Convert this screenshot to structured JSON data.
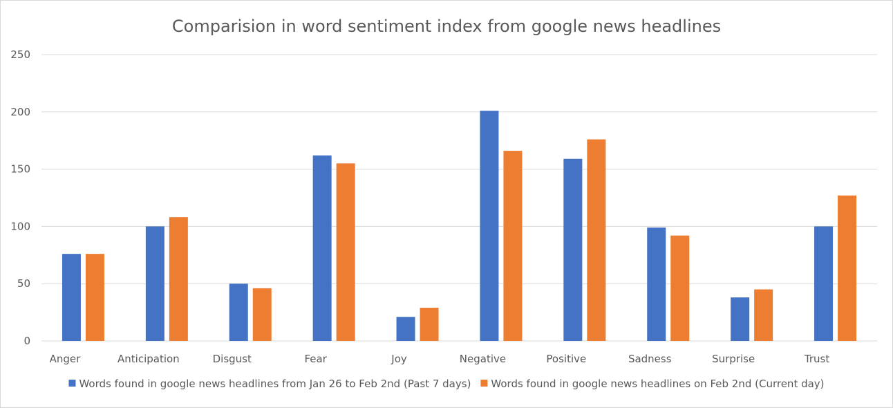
{
  "chart_data": {
    "type": "bar",
    "title": "Comparision in word sentiment index from google news headlines",
    "categories": [
      "Anger",
      "Anticipation",
      "Disgust",
      "Fear",
      "Joy",
      "Negative",
      "Positive",
      "Sadness",
      "Surprise",
      "Trust"
    ],
    "series": [
      {
        "name": "Words found in google news headlines from Jan 26 to Feb 2nd (Past 7 days)",
        "color": "#4472C4",
        "values": [
          76,
          100,
          50,
          162,
          21,
          201,
          159,
          99,
          38,
          100
        ]
      },
      {
        "name": "Words found in google news headlines on Feb 2nd (Current day)",
        "color": "#ED7D31",
        "values": [
          76,
          108,
          46,
          155,
          29,
          166,
          176,
          92,
          45,
          127
        ]
      }
    ],
    "ylim": [
      0,
      250
    ],
    "yticks": [
      "0",
      "50",
      "100",
      "150",
      "200",
      "250"
    ],
    "grid": true,
    "legend_position": "bottom"
  }
}
